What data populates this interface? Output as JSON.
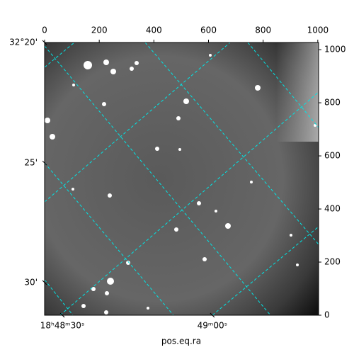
{
  "chart_data": {
    "type": "image",
    "xlabel": "pos.eq.ra",
    "xlim": [
      0,
      1003
    ],
    "ylim": [
      0,
      1027
    ],
    "xticks": [
      0,
      200,
      400,
      600,
      800,
      1000
    ],
    "yticks": [
      0,
      200,
      400,
      600,
      800,
      1000
    ],
    "dec_ticks": [
      {
        "value": 1027,
        "label": "32°20'"
      },
      {
        "value": 573,
        "label": "25'"
      },
      {
        "value": 123,
        "label": "30'"
      }
    ],
    "ra_ticks": [
      {
        "value": 65,
        "label": "18ʰ48ᵐ30ˢ"
      },
      {
        "value": 614,
        "label": "49ᵐ00ˢ"
      }
    ],
    "colormap": "gray",
    "grid_color": "#00e5e5"
  }
}
